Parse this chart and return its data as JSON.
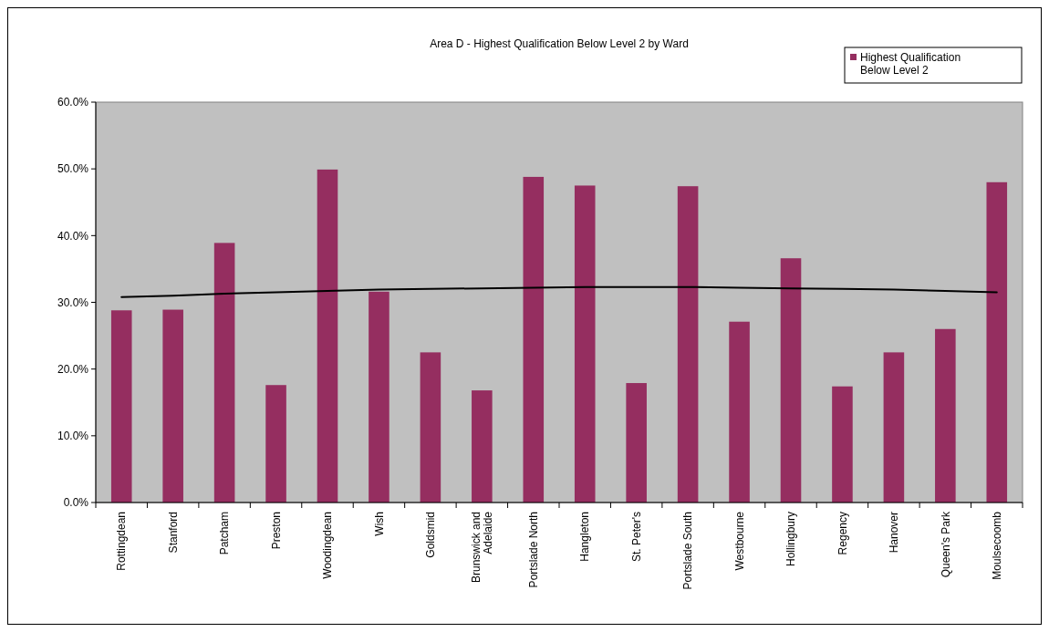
{
  "chart_data": {
    "type": "bar",
    "title": "Area D - Highest Qualification Below Level 2 by Ward",
    "categories": [
      "Rottingdean",
      "Stanford",
      "Patcham",
      "Preston",
      "Woodingdean",
      "Wish",
      "Goldsmid",
      "Brunswick and Adelaide",
      "Portslade North",
      "Hangleton",
      "St. Peter's",
      "Portslade South",
      "Westbourne",
      "Hollingbury",
      "Regency",
      "Hanover",
      "Queen's Park",
      "Moulsecoomb"
    ],
    "series": [
      {
        "name": "Highest Qualification Below Level 2",
        "color": "#952e60",
        "values": [
          28.8,
          28.9,
          38.9,
          17.6,
          49.9,
          31.6,
          22.5,
          16.8,
          48.8,
          47.5,
          17.9,
          47.4,
          27.1,
          36.6,
          17.4,
          22.5,
          26.0,
          48.0
        ]
      },
      {
        "type": "line",
        "color": "#000000",
        "values": [
          30.8,
          31.0,
          31.3,
          31.5,
          31.7,
          31.9,
          32.0,
          32.1,
          32.2,
          32.3,
          32.3,
          32.3,
          32.2,
          32.1,
          32.0,
          31.9,
          31.7,
          31.5
        ]
      }
    ],
    "ylim": [
      0,
      60
    ],
    "yticks": [
      {
        "value": 0,
        "label": "0.0%"
      },
      {
        "value": 10,
        "label": "10.0%"
      },
      {
        "value": 20,
        "label": "20.0%"
      },
      {
        "value": 30,
        "label": "30.0%"
      },
      {
        "value": 40,
        "label": "40.0%"
      },
      {
        "value": 50,
        "label": "50.0%"
      },
      {
        "value": 60,
        "label": "60.0%"
      }
    ],
    "grid": false,
    "legend": "top right"
  }
}
